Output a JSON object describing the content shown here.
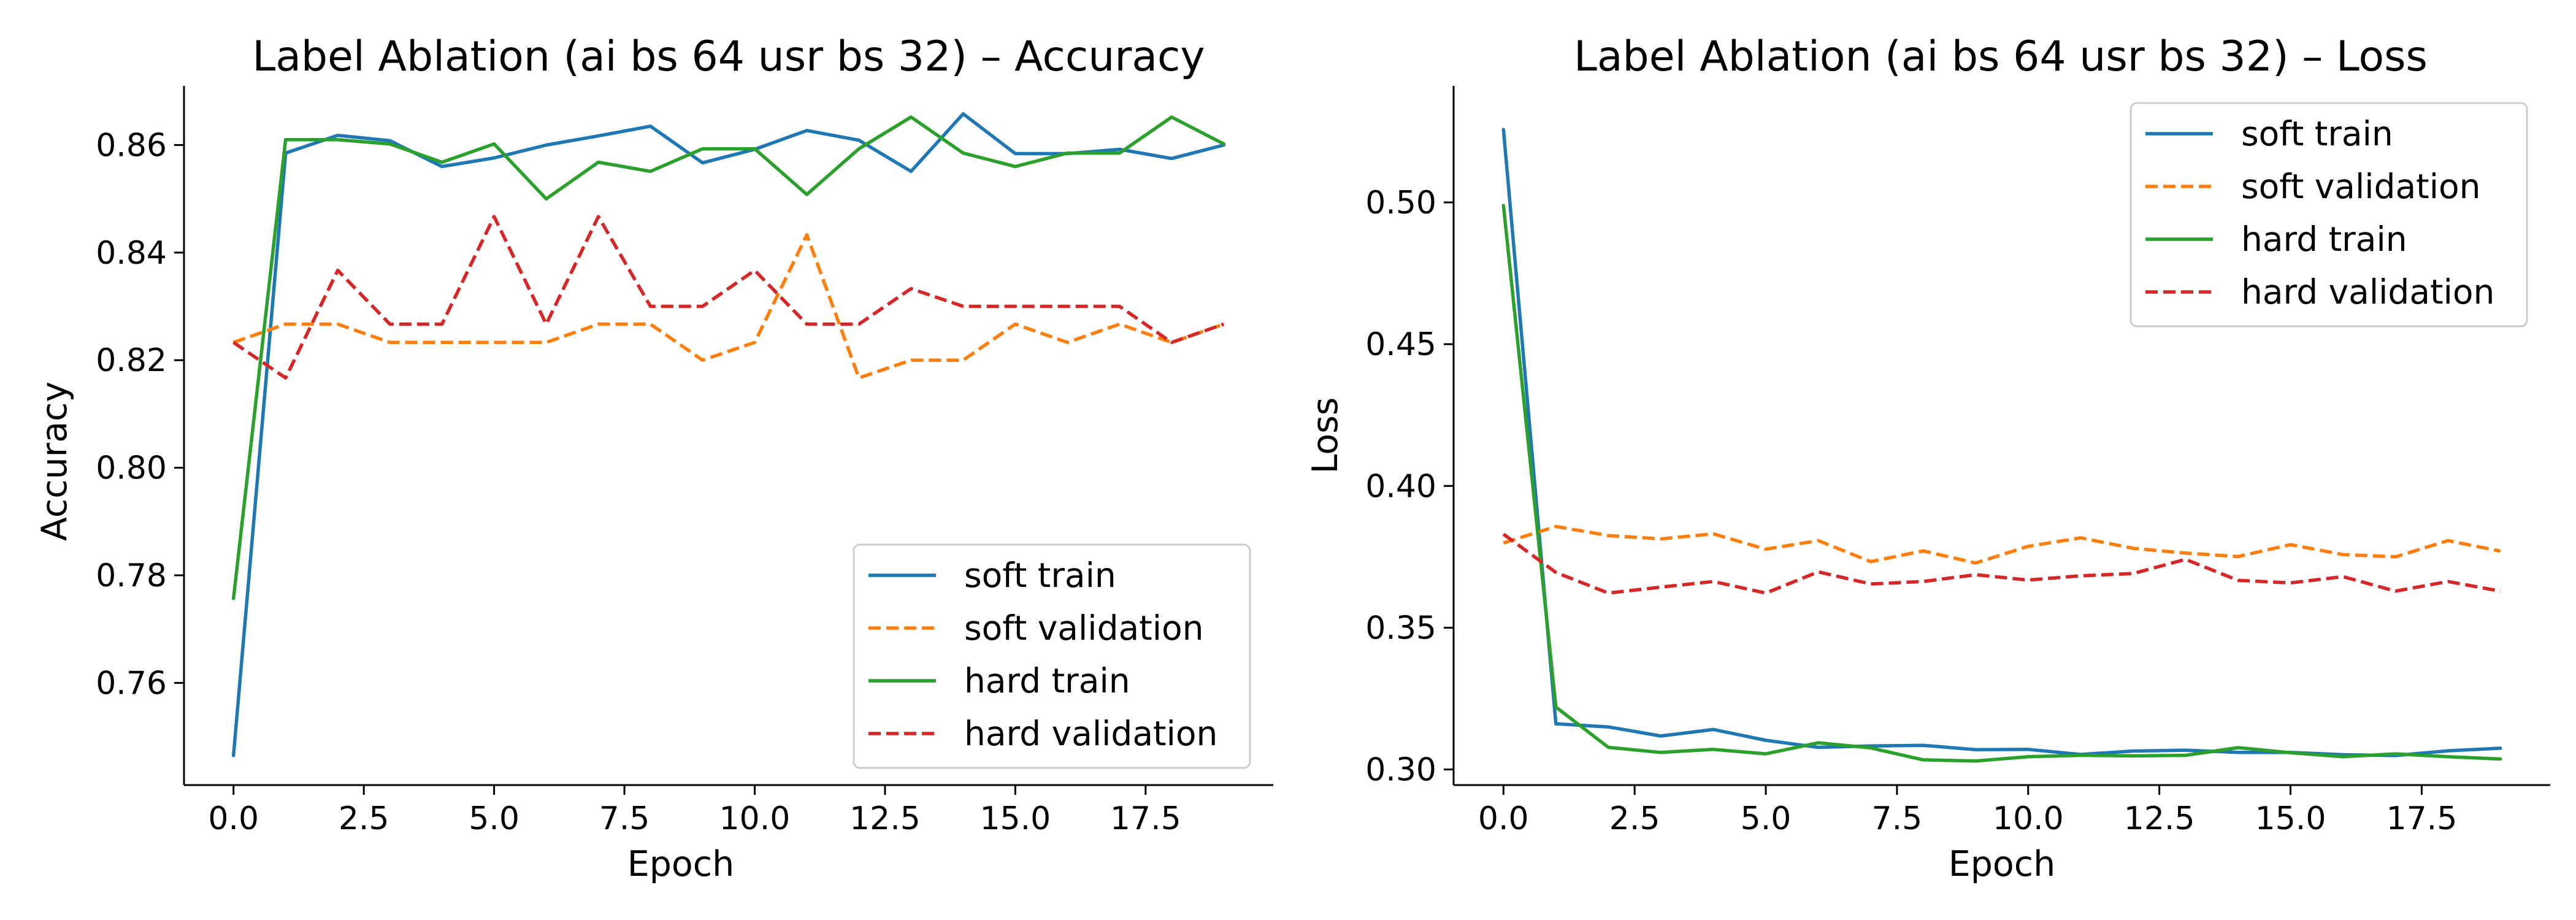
{
  "chart_data": [
    {
      "type": "line",
      "title": "Label Ablation (ai bs 64 usr bs 32) – Accuracy",
      "xlabel": "Epoch",
      "ylabel": "Accuracy",
      "xlim": [
        -0.95,
        19.95
      ],
      "ylim": [
        0.741,
        0.871
      ],
      "xticks": [
        0.0,
        2.5,
        5.0,
        7.5,
        10.0,
        12.5,
        15.0,
        17.5
      ],
      "xtick_labels": [
        "0.0",
        "2.5",
        "5.0",
        "7.5",
        "10.0",
        "12.5",
        "15.0",
        "17.5"
      ],
      "yticks": [
        0.76,
        0.78,
        0.8,
        0.82,
        0.84,
        0.86
      ],
      "ytick_labels": [
        "0.76",
        "0.78",
        "0.80",
        "0.82",
        "0.84",
        "0.86"
      ],
      "legend_position": "lower-right",
      "x": [
        0,
        1,
        2,
        3,
        4,
        5,
        6,
        7,
        8,
        9,
        10,
        11,
        12,
        13,
        14,
        15,
        16,
        17,
        18,
        19
      ],
      "series": [
        {
          "name": "soft train",
          "color": "#1f77b4",
          "style": "solid",
          "values": [
            0.7465,
            0.8585,
            0.8618,
            0.8608,
            0.856,
            0.8576,
            0.86,
            0.8617,
            0.8635,
            0.8567,
            0.8592,
            0.8627,
            0.8609,
            0.8551,
            0.8658,
            0.8584,
            0.8584,
            0.8592,
            0.8575,
            0.86
          ]
        },
        {
          "name": "soft validation",
          "color": "#ff7f0e",
          "style": "dashed",
          "values": [
            0.8233,
            0.8267,
            0.8267,
            0.8233,
            0.8233,
            0.8233,
            0.8233,
            0.8267,
            0.8267,
            0.82,
            0.8233,
            0.8433,
            0.8167,
            0.82,
            0.82,
            0.8267,
            0.8233,
            0.8267,
            0.8233,
            0.8267
          ]
        },
        {
          "name": "hard train",
          "color": "#2ca02c",
          "style": "solid",
          "values": [
            0.7757,
            0.861,
            0.861,
            0.8602,
            0.8568,
            0.8602,
            0.85,
            0.8568,
            0.8551,
            0.8593,
            0.8593,
            0.8508,
            0.8593,
            0.8652,
            0.8585,
            0.856,
            0.8585,
            0.8585,
            0.8652,
            0.8602
          ]
        },
        {
          "name": "hard validation",
          "color": "#d62728",
          "style": "dashed",
          "values": [
            0.8233,
            0.8167,
            0.8367,
            0.8267,
            0.8267,
            0.8467,
            0.8267,
            0.8467,
            0.83,
            0.83,
            0.8367,
            0.8267,
            0.8267,
            0.8333,
            0.83,
            0.83,
            0.83,
            0.83,
            0.8233,
            0.8267
          ]
        }
      ]
    },
    {
      "type": "line",
      "title": "Label Ablation (ai bs 64 usr bs 32) – Loss",
      "xlabel": "Epoch",
      "ylabel": "Loss",
      "xlim": [
        -0.95,
        19.95
      ],
      "ylim": [
        0.2945,
        0.5411
      ],
      "xticks": [
        0.0,
        2.5,
        5.0,
        7.5,
        10.0,
        12.5,
        15.0,
        17.5
      ],
      "xtick_labels": [
        "0.0",
        "2.5",
        "5.0",
        "7.5",
        "10.0",
        "12.5",
        "15.0",
        "17.5"
      ],
      "yticks": [
        0.3,
        0.35,
        0.4,
        0.45,
        0.5
      ],
      "ytick_labels": [
        "0.30",
        "0.35",
        "0.40",
        "0.45",
        "0.50"
      ],
      "legend_position": "upper-right",
      "x": [
        0,
        1,
        2,
        3,
        4,
        5,
        6,
        7,
        8,
        9,
        10,
        11,
        12,
        13,
        14,
        15,
        16,
        17,
        18,
        19
      ],
      "series": [
        {
          "name": "soft train",
          "color": "#1f77b4",
          "style": "solid",
          "values": [
            0.5257,
            0.3161,
            0.315,
            0.3118,
            0.3141,
            0.3103,
            0.3078,
            0.3083,
            0.3085,
            0.307,
            0.3071,
            0.3053,
            0.3065,
            0.3068,
            0.306,
            0.306,
            0.3052,
            0.3049,
            0.3066,
            0.3075
          ]
        },
        {
          "name": "soft validation",
          "color": "#ff7f0e",
          "style": "dashed",
          "values": [
            0.3799,
            0.3857,
            0.3825,
            0.3813,
            0.3831,
            0.3777,
            0.3807,
            0.3733,
            0.3771,
            0.3728,
            0.3787,
            0.3817,
            0.378,
            0.3763,
            0.3751,
            0.3793,
            0.3758,
            0.375,
            0.3807,
            0.377
          ]
        },
        {
          "name": "hard train",
          "color": "#2ca02c",
          "style": "solid",
          "values": [
            0.4989,
            0.322,
            0.3078,
            0.306,
            0.3071,
            0.3055,
            0.3094,
            0.3076,
            0.3034,
            0.303,
            0.3045,
            0.305,
            0.3048,
            0.305,
            0.3077,
            0.3059,
            0.3045,
            0.3055,
            0.3045,
            0.3037
          ]
        },
        {
          "name": "hard validation",
          "color": "#d62728",
          "style": "dashed",
          "values": [
            0.383,
            0.3695,
            0.3622,
            0.3643,
            0.3663,
            0.3622,
            0.3697,
            0.3654,
            0.3663,
            0.3687,
            0.3668,
            0.3683,
            0.3691,
            0.3741,
            0.3667,
            0.3658,
            0.368,
            0.3629,
            0.3663,
            0.3629
          ]
        }
      ]
    }
  ]
}
